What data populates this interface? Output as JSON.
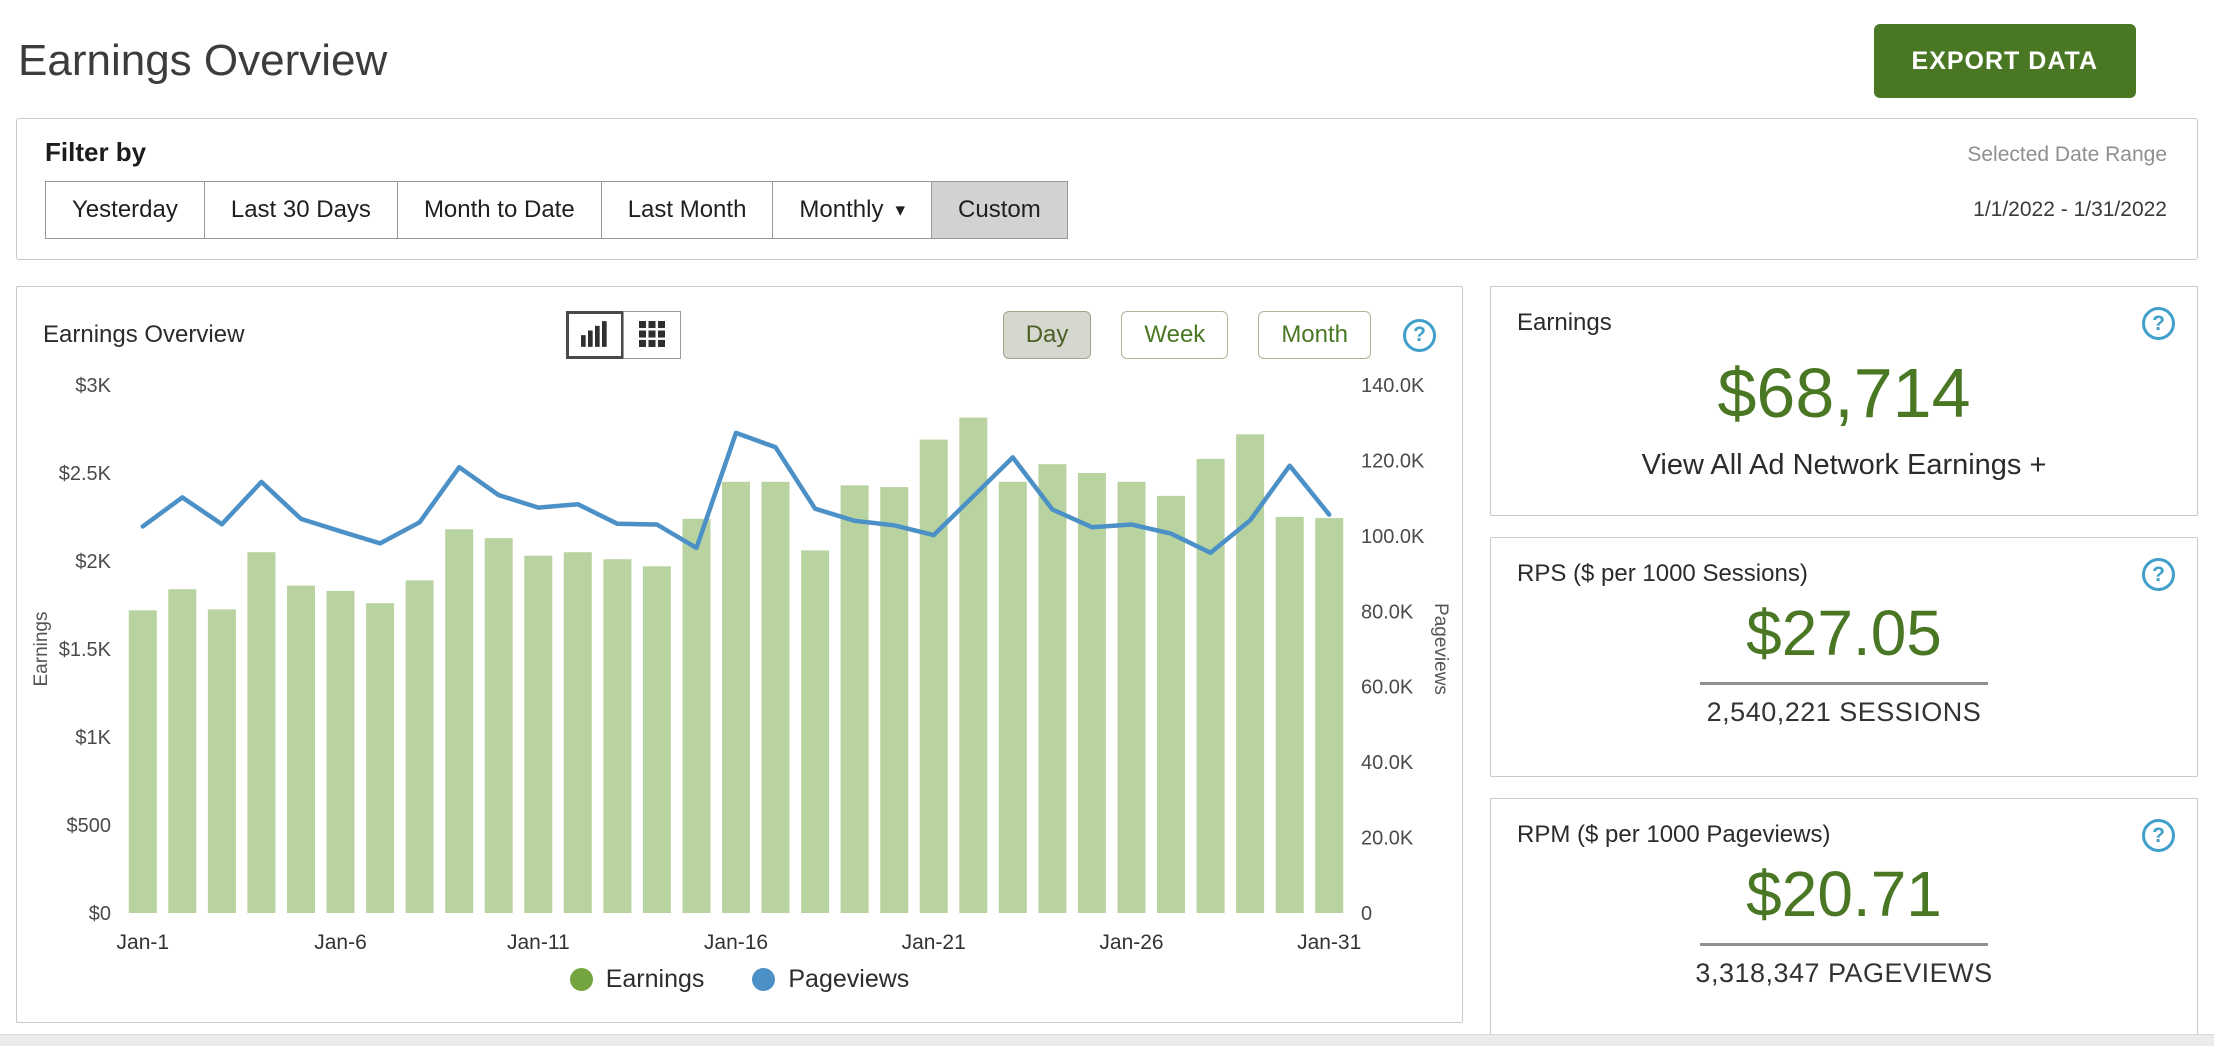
{
  "page": {
    "title": "Earnings Overview",
    "export_button_label": "EXPORT DATA"
  },
  "filter_bar": {
    "label": "Filter by",
    "buttons": [
      {
        "label": "Yesterday",
        "active": false,
        "has_dropdown": false
      },
      {
        "label": "Last 30 Days",
        "active": false,
        "has_dropdown": false
      },
      {
        "label": "Month to Date",
        "active": false,
        "has_dropdown": false
      },
      {
        "label": "Last Month",
        "active": false,
        "has_dropdown": false
      },
      {
        "label": "Monthly",
        "active": false,
        "has_dropdown": true
      },
      {
        "label": "Custom",
        "active": true,
        "has_dropdown": false
      }
    ],
    "selected_range_label": "Selected Date Range",
    "selected_range_value": "1/1/2022 - 1/31/2022"
  },
  "chart_panel": {
    "title": "Earnings Overview",
    "view_toggles": [
      {
        "name": "chart-view",
        "active": true
      },
      {
        "name": "table-view",
        "active": false
      }
    ],
    "granularity_buttons": [
      {
        "label": "Day",
        "active": true
      },
      {
        "label": "Week",
        "active": false
      },
      {
        "label": "Month",
        "active": false
      }
    ]
  },
  "chart_data": {
    "type": "combo_bar_line",
    "title": "Earnings Overview",
    "grid": false,
    "legend_position": "bottom",
    "x": [
      "Jan-1",
      "Jan-2",
      "Jan-3",
      "Jan-4",
      "Jan-5",
      "Jan-6",
      "Jan-7",
      "Jan-8",
      "Jan-9",
      "Jan-10",
      "Jan-11",
      "Jan-12",
      "Jan-13",
      "Jan-14",
      "Jan-15",
      "Jan-16",
      "Jan-17",
      "Jan-18",
      "Jan-19",
      "Jan-20",
      "Jan-21",
      "Jan-22",
      "Jan-23",
      "Jan-24",
      "Jan-25",
      "Jan-26",
      "Jan-27",
      "Jan-28",
      "Jan-29",
      "Jan-30",
      "Jan-31"
    ],
    "x_tick_labels": [
      "Jan-1",
      "Jan-6",
      "Jan-11",
      "Jan-16",
      "Jan-21",
      "Jan-26",
      "Jan-31"
    ],
    "series": [
      {
        "name": "Earnings",
        "type": "bar",
        "axis": "left",
        "color": "#b9d3a0",
        "legend_color": "#74a43e",
        "values": [
          1720,
          1840,
          1725,
          2050,
          1860,
          1830,
          1760,
          1890,
          2180,
          2130,
          2030,
          2050,
          2010,
          1970,
          2240,
          2450,
          2450,
          2060,
          2430,
          2420,
          2690,
          2815,
          2450,
          2550,
          2500,
          2450,
          2370,
          2580,
          2720,
          2250,
          2244
        ]
      },
      {
        "name": "Pageviews",
        "type": "line",
        "axis": "right",
        "color": "#4b90c6",
        "legend_color": "#4b90c6",
        "values": [
          102500,
          110200,
          103100,
          114300,
          104500,
          101200,
          98000,
          103600,
          118200,
          110800,
          107500,
          108400,
          103200,
          103000,
          96800,
          127300,
          123500,
          107200,
          104000,
          102800,
          100200,
          110500,
          120800,
          107000,
          102300,
          103000,
          100600,
          95500,
          104100,
          118600,
          105647
        ]
      }
    ],
    "left_axis": {
      "label": "Earnings",
      "min": 0,
      "max": 3000,
      "ticks": [
        "$0",
        "$500",
        "$1K",
        "$1.5K",
        "$2K",
        "$2.5K",
        "$3K"
      ]
    },
    "right_axis": {
      "label": "Pageviews",
      "min": 0,
      "max": 140000,
      "ticks": [
        "0",
        "20.0K",
        "40.0K",
        "60.0K",
        "80.0K",
        "100.0K",
        "120.0K",
        "140.0K"
      ]
    },
    "legend": [
      {
        "label": "Earnings",
        "color": "#74a43e"
      },
      {
        "label": "Pageviews",
        "color": "#4b90c6"
      }
    ]
  },
  "summary_cards": {
    "earnings": {
      "title": "Earnings",
      "value": "$68,714",
      "link_label": "View All Ad Network Earnings +"
    },
    "rps": {
      "title": "RPS ($ per 1000 Sessions)",
      "value": "$27.05",
      "subtitle": "2,540,221 SESSIONS"
    },
    "rpm": {
      "title": "RPM ($ per 1000 Pageviews)",
      "value": "$20.71",
      "subtitle": "3,318,347 PAGEVIEWS"
    }
  },
  "colors": {
    "accent_green": "#4a7724",
    "bar_green": "#b9d3a0",
    "line_blue": "#4b90c6",
    "help_blue": "#41a0c9",
    "active_filter_bg": "#d2d2d2"
  }
}
